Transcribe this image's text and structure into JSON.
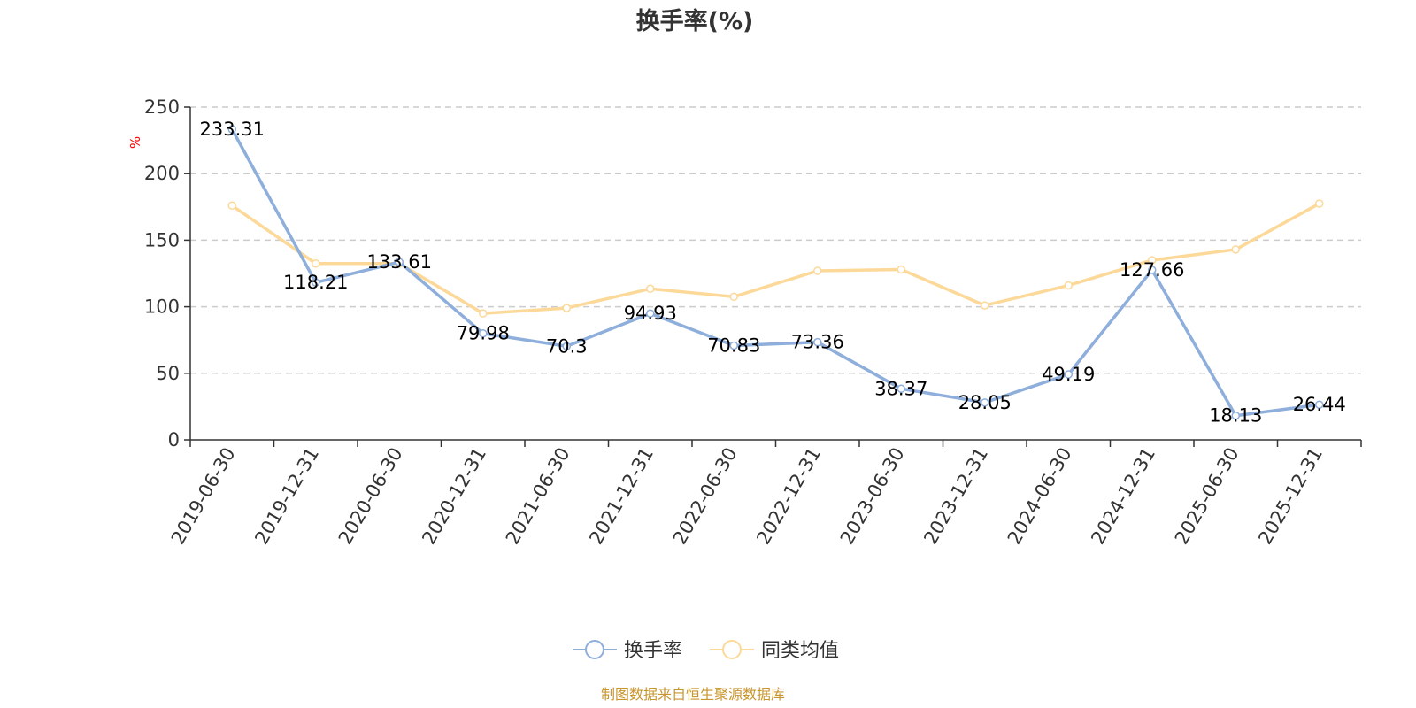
{
  "chart_data": {
    "type": "line",
    "title": "换手率(%)",
    "ylabel": "%",
    "ylim": [
      0,
      250
    ],
    "yticks": [
      0,
      50,
      100,
      150,
      200,
      250
    ],
    "grid": true,
    "x": [
      "2019-06-30",
      "2019-12-31",
      "2020-06-30",
      "2020-12-31",
      "2021-06-30",
      "2021-12-31",
      "2022-06-30",
      "2022-12-31",
      "2023-06-30",
      "2023-12-31",
      "2024-06-30",
      "2024-12-31",
      "2025-06-30",
      "2025-12-31"
    ],
    "series": [
      {
        "name": "换手率",
        "color": "#8eaedb",
        "values": [
          233.31,
          118.21,
          133.61,
          79.98,
          70.3,
          94.93,
          70.83,
          73.36,
          38.37,
          28.05,
          49.19,
          127.66,
          18.13,
          26.44
        ],
        "labels": [
          "233.31",
          "118.21",
          "133.61",
          "79.98",
          "70.3",
          "94.93",
          "70.83",
          "73.36",
          "38.37",
          "28.05",
          "49.19",
          "127.66",
          "18.13",
          "26.44"
        ]
      },
      {
        "name": "同类均值",
        "color": "#fcd999",
        "values": [
          176,
          132.5,
          132.5,
          95,
          99,
          113.5,
          107.5,
          127,
          128,
          101,
          116,
          135,
          143,
          177.5
        ]
      }
    ],
    "legend_position": "bottom-center",
    "source": "制图数据来自恒生聚源数据库"
  }
}
